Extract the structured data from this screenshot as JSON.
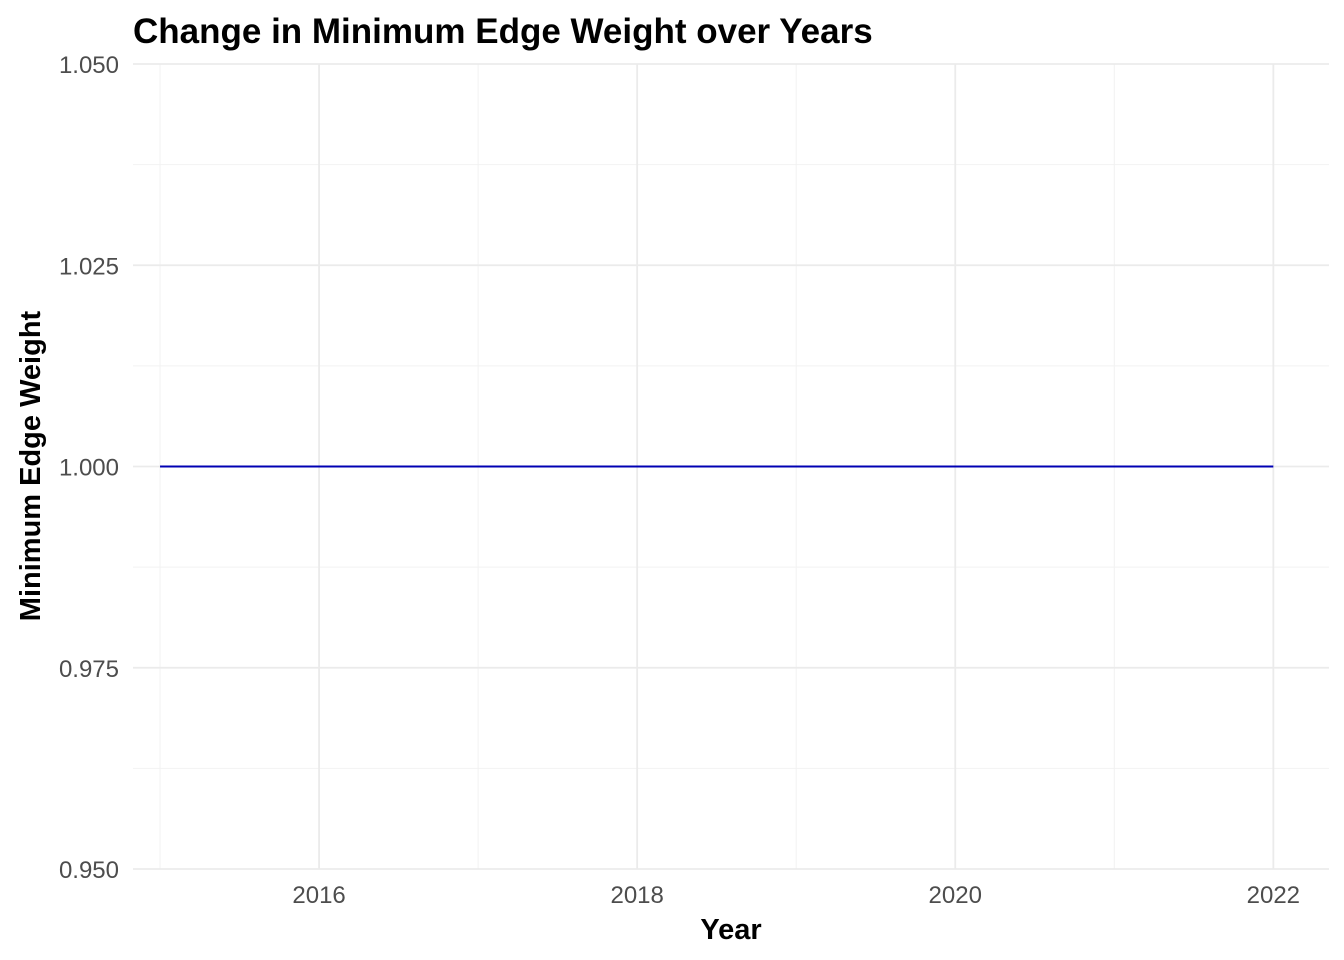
{
  "chart_data": {
    "type": "line",
    "title": "Change in Minimum Edge Weight over Years",
    "xlabel": "Year",
    "ylabel": "Minimum Edge Weight",
    "xlim": [
      2014.83,
      2022.35
    ],
    "ylim": [
      0.95,
      1.05
    ],
    "x_ticks": [
      2016,
      2018,
      2020,
      2022
    ],
    "x_tick_labels": [
      "2016",
      "2018",
      "2020",
      "2022"
    ],
    "y_ticks": [
      0.95,
      0.975,
      1.0,
      1.025,
      1.05
    ],
    "y_tick_labels": [
      "0.950",
      "0.975",
      "1.000",
      "1.025",
      "1.050"
    ],
    "x_minor_ticks": [
      2015,
      2017,
      2019,
      2021
    ],
    "y_minor_ticks": [
      0.9625,
      0.9875,
      1.0125,
      1.0375
    ],
    "grid": true,
    "legend": "none",
    "series": [
      {
        "color": "#0000b3",
        "x": [
          2015,
          2016,
          2017,
          2018,
          2019,
          2020,
          2021,
          2022
        ],
        "y": [
          1,
          1,
          1,
          1,
          1,
          1,
          1,
          1
        ]
      }
    ]
  }
}
